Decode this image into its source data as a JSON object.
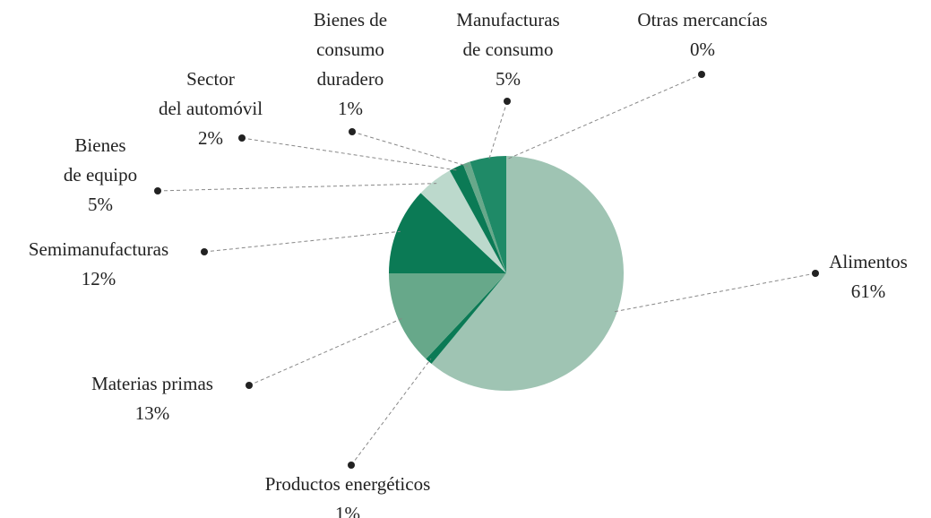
{
  "chart_data": {
    "type": "pie",
    "categories": [
      "Alimentos",
      "Productos energéticos",
      "Materias primas",
      "Semimanufacturas",
      "Bienes\nde equipo",
      "Sector\ndel automóvil",
      "Bienes de\nconsumo\nduradero",
      "Manufacturas\nde consumo",
      "Otras mercancías"
    ],
    "values": [
      61,
      1,
      13,
      12,
      5,
      2,
      1,
      5,
      0
    ],
    "value_labels": [
      "61%",
      "1%",
      "13%",
      "12%",
      "5%",
      "2%",
      "1%",
      "5%",
      "0%"
    ],
    "colors": [
      "#9fc4b3",
      "#0b7a55",
      "#67a88a",
      "#0b7a55",
      "#bcd9cc",
      "#0b7a55",
      "#67a88a",
      "#1f8a67",
      "#1f8a67"
    ]
  }
}
